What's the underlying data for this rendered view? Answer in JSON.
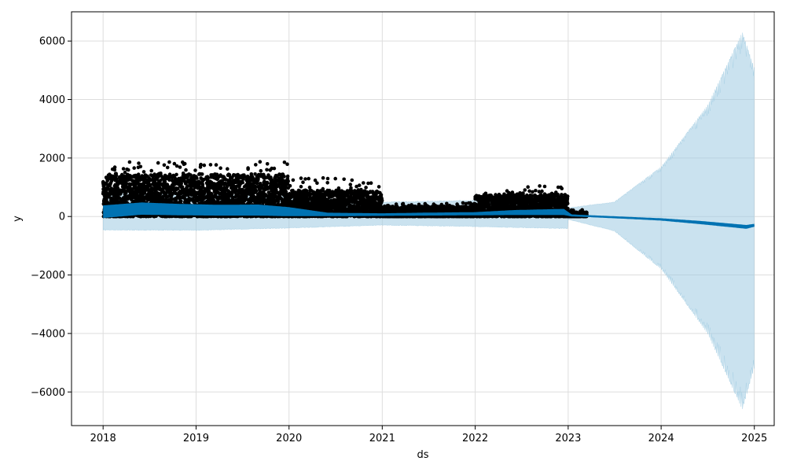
{
  "chart_data": {
    "type": "line",
    "xlabel": "ds",
    "ylabel": "y",
    "xlim": [
      "2017-08-30",
      "2025-03-20"
    ],
    "ylim": [
      -7150,
      7000
    ],
    "grid": true,
    "x_tick_labels": [
      "2018",
      "2019",
      "2020",
      "2021",
      "2022",
      "2023",
      "2024",
      "2025"
    ],
    "y_ticks": [
      6000,
      4000,
      2000,
      0,
      -2000,
      -4000,
      -6000
    ],
    "y_tick_labels": [
      "6000",
      "4000",
      "2000",
      "0",
      "−2000",
      "−4000",
      "−6000"
    ],
    "colors": {
      "observed": "#000000",
      "forecast": "#0072B2",
      "uncertainty": "#9ecae1",
      "grid": "#dddddd"
    },
    "series": [
      {
        "kind": "observed_points",
        "segments": [
          {
            "start": "2018-01-01",
            "end": "2019-12-31",
            "typical_max": 1450,
            "peak": 1870,
            "min": 0
          },
          {
            "start": "2020-01-01",
            "end": "2020-12-31",
            "typical_max": 900,
            "peak": 1330,
            "min": 0
          },
          {
            "start": "2021-01-01",
            "end": "2021-12-31",
            "typical_max": 350,
            "peak": 470,
            "min": 0
          },
          {
            "start": "2022-01-01",
            "end": "2022-12-31",
            "typical_max": 750,
            "peak": 1050,
            "min": 0
          },
          {
            "start": "2023-01-01",
            "end": "2023-03-15",
            "typical_max": 150,
            "peak": 230,
            "min": 0
          }
        ]
      },
      {
        "kind": "forecast_yhat",
        "x": [
          "2018-01-01",
          "2018-06-01",
          "2018-11-01",
          "2019-04-01",
          "2019-09-01",
          "2020-01-01",
          "2020-06-01",
          "2021-01-01",
          "2021-06-01",
          "2022-01-01",
          "2022-06-01",
          "2022-12-15",
          "2023-01-15",
          "2023-06-01",
          "2024-01-01",
          "2024-06-01",
          "2024-12-01",
          "2025-01-01"
        ],
        "y": [
          320,
          330,
          320,
          330,
          320,
          250,
          80,
          70,
          90,
          100,
          140,
          160,
          40,
          -20,
          -100,
          -210,
          -360,
          -310
        ],
        "band_high": [
          380,
          480,
          430,
          400,
          410,
          320,
          130,
          110,
          130,
          150,
          220,
          260,
          70,
          20,
          -60,
          -150,
          -290,
          -250
        ],
        "band_low": [
          -50,
          60,
          40,
          30,
          30,
          10,
          10,
          20,
          30,
          40,
          50,
          50,
          0,
          -40,
          -140,
          -260,
          -420,
          -350
        ]
      },
      {
        "kind": "uncertainty_interval",
        "x": [
          "2018-01-01",
          "2019-01-01",
          "2020-01-01",
          "2021-01-01",
          "2022-01-01",
          "2022-12-31",
          "2023-01-01",
          "2023-07-01",
          "2024-01-01",
          "2024-07-01",
          "2024-11-15",
          "2024-12-31"
        ],
        "upper": [
          820,
          780,
          700,
          500,
          560,
          620,
          300,
          500,
          1700,
          3800,
          6300,
          5100
        ],
        "lower": [
          -470,
          -480,
          -400,
          -300,
          -350,
          -420,
          -100,
          -500,
          -1800,
          -4000,
          -6600,
          -5200
        ]
      }
    ]
  }
}
